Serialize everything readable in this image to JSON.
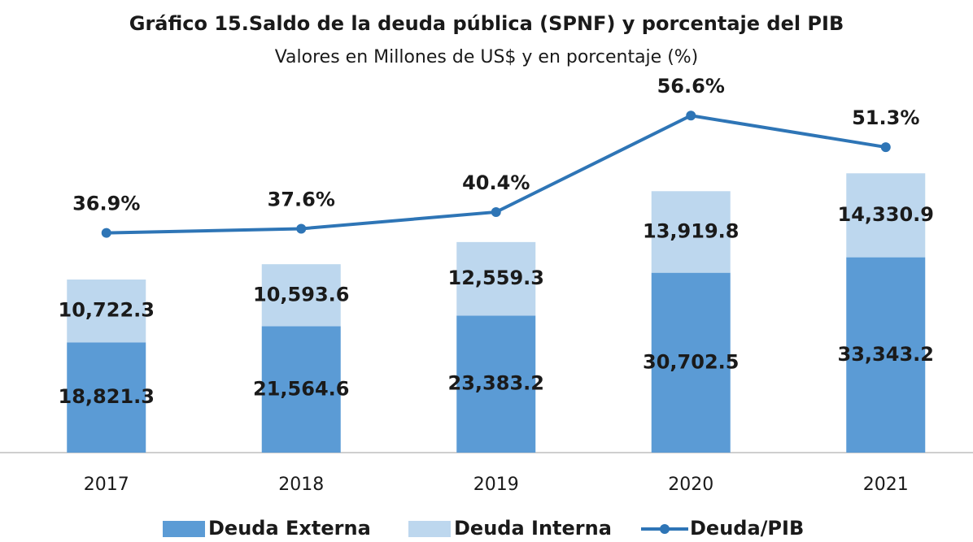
{
  "chart_data": {
    "type": "bar+line",
    "title": "Gráfico 15.Saldo de la deuda pública (SPNF) y porcentaje del PIB",
    "subtitle": "Valores en Millones de US$ y en porcentaje (%)",
    "categories": [
      "2017",
      "2018",
      "2019",
      "2020",
      "2021"
    ],
    "stacked": true,
    "series": [
      {
        "name": "Deuda Externa",
        "type": "bar",
        "color": "#5b9bd5",
        "values": [
          18821.3,
          21564.6,
          23383.2,
          30702.5,
          33343.2
        ],
        "value_labels": [
          "18,821.3",
          "21,564.6",
          "23,383.2",
          "30,702.5",
          "33,343.2"
        ]
      },
      {
        "name": "Deuda Interna",
        "type": "bar",
        "color": "#bdd7ee",
        "values": [
          10722.3,
          10593.6,
          12559.3,
          13919.8,
          14330.9
        ],
        "value_labels": [
          "10,722.3",
          "10,593.6",
          "12,559.3",
          "13,919.8",
          "14,330.9"
        ]
      },
      {
        "name": "Deuda/PIB",
        "type": "line",
        "axis": "y2",
        "color": "#2e75b6",
        "values": [
          36.9,
          37.6,
          40.4,
          56.6,
          51.3
        ],
        "value_labels": [
          "36.9%",
          "37.6%",
          "40.4%",
          "56.6%",
          "51.3%"
        ]
      }
    ],
    "ylim": [
      0,
      62000
    ],
    "y2lim": [
      0,
      61
    ],
    "legend": "bottom"
  }
}
